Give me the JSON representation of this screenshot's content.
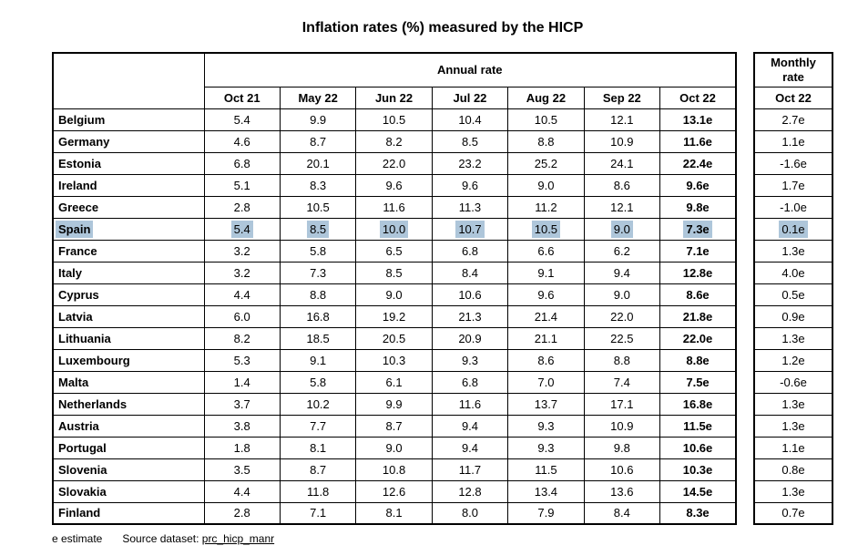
{
  "title": "Inflation rates (%) measured by the HICP",
  "highlight_color": "#aec6da",
  "annual": {
    "header": "Annual rate",
    "columns": [
      "Oct 21",
      "May 22",
      "Jun 22",
      "Jul 22",
      "Aug 22",
      "Sep 22",
      "Oct 22"
    ]
  },
  "monthly": {
    "header": "Monthly rate",
    "column": "Oct 22"
  },
  "rows": [
    {
      "country": "Belgium",
      "annual": [
        "5.4",
        "9.9",
        "10.5",
        "10.4",
        "10.5",
        "12.1",
        "13.1e"
      ],
      "monthly": "2.7e",
      "highlight": false
    },
    {
      "country": "Germany",
      "annual": [
        "4.6",
        "8.7",
        "8.2",
        "8.5",
        "8.8",
        "10.9",
        "11.6e"
      ],
      "monthly": "1.1e",
      "highlight": false
    },
    {
      "country": "Estonia",
      "annual": [
        "6.8",
        "20.1",
        "22.0",
        "23.2",
        "25.2",
        "24.1",
        "22.4e"
      ],
      "monthly": "-1.6e",
      "highlight": false
    },
    {
      "country": "Ireland",
      "annual": [
        "5.1",
        "8.3",
        "9.6",
        "9.6",
        "9.0",
        "8.6",
        "9.6e"
      ],
      "monthly": "1.7e",
      "highlight": false
    },
    {
      "country": "Greece",
      "annual": [
        "2.8",
        "10.5",
        "11.6",
        "11.3",
        "11.2",
        "12.1",
        "9.8e"
      ],
      "monthly": "-1.0e",
      "highlight": false
    },
    {
      "country": "Spain",
      "annual": [
        "5.4",
        "8.5",
        "10.0",
        "10.7",
        "10.5",
        "9.0",
        "7.3e"
      ],
      "monthly": "0.1e",
      "highlight": true
    },
    {
      "country": "France",
      "annual": [
        "3.2",
        "5.8",
        "6.5",
        "6.8",
        "6.6",
        "6.2",
        "7.1e"
      ],
      "monthly": "1.3e",
      "highlight": false
    },
    {
      "country": "Italy",
      "annual": [
        "3.2",
        "7.3",
        "8.5",
        "8.4",
        "9.1",
        "9.4",
        "12.8e"
      ],
      "monthly": "4.0e",
      "highlight": false
    },
    {
      "country": "Cyprus",
      "annual": [
        "4.4",
        "8.8",
        "9.0",
        "10.6",
        "9.6",
        "9.0",
        "8.6e"
      ],
      "monthly": "0.5e",
      "highlight": false
    },
    {
      "country": "Latvia",
      "annual": [
        "6.0",
        "16.8",
        "19.2",
        "21.3",
        "21.4",
        "22.0",
        "21.8e"
      ],
      "monthly": "0.9e",
      "highlight": false
    },
    {
      "country": "Lithuania",
      "annual": [
        "8.2",
        "18.5",
        "20.5",
        "20.9",
        "21.1",
        "22.5",
        "22.0e"
      ],
      "monthly": "1.3e",
      "highlight": false
    },
    {
      "country": "Luxembourg",
      "annual": [
        "5.3",
        "9.1",
        "10.3",
        "9.3",
        "8.6",
        "8.8",
        "8.8e"
      ],
      "monthly": "1.2e",
      "highlight": false
    },
    {
      "country": "Malta",
      "annual": [
        "1.4",
        "5.8",
        "6.1",
        "6.8",
        "7.0",
        "7.4",
        "7.5e"
      ],
      "monthly": "-0.6e",
      "highlight": false
    },
    {
      "country": "Netherlands",
      "annual": [
        "3.7",
        "10.2",
        "9.9",
        "11.6",
        "13.7",
        "17.1",
        "16.8e"
      ],
      "monthly": "1.3e",
      "highlight": false
    },
    {
      "country": "Austria",
      "annual": [
        "3.8",
        "7.7",
        "8.7",
        "9.4",
        "9.3",
        "10.9",
        "11.5e"
      ],
      "monthly": "1.3e",
      "highlight": false
    },
    {
      "country": "Portugal",
      "annual": [
        "1.8",
        "8.1",
        "9.0",
        "9.4",
        "9.3",
        "9.8",
        "10.6e"
      ],
      "monthly": "1.1e",
      "highlight": false
    },
    {
      "country": "Slovenia",
      "annual": [
        "3.5",
        "8.7",
        "10.8",
        "11.7",
        "11.5",
        "10.6",
        "10.3e"
      ],
      "monthly": "0.8e",
      "highlight": false
    },
    {
      "country": "Slovakia",
      "annual": [
        "4.4",
        "11.8",
        "12.6",
        "12.8",
        "13.4",
        "13.6",
        "14.5e"
      ],
      "monthly": "1.3e",
      "highlight": false
    },
    {
      "country": "Finland",
      "annual": [
        "2.8",
        "7.1",
        "8.1",
        "8.0",
        "7.9",
        "8.4",
        "8.3e"
      ],
      "monthly": "0.7e",
      "highlight": false
    }
  ],
  "footer": {
    "estimate_note": "e estimate",
    "source_label": "Source dataset:",
    "source_link": "prc_hicp_manr"
  }
}
